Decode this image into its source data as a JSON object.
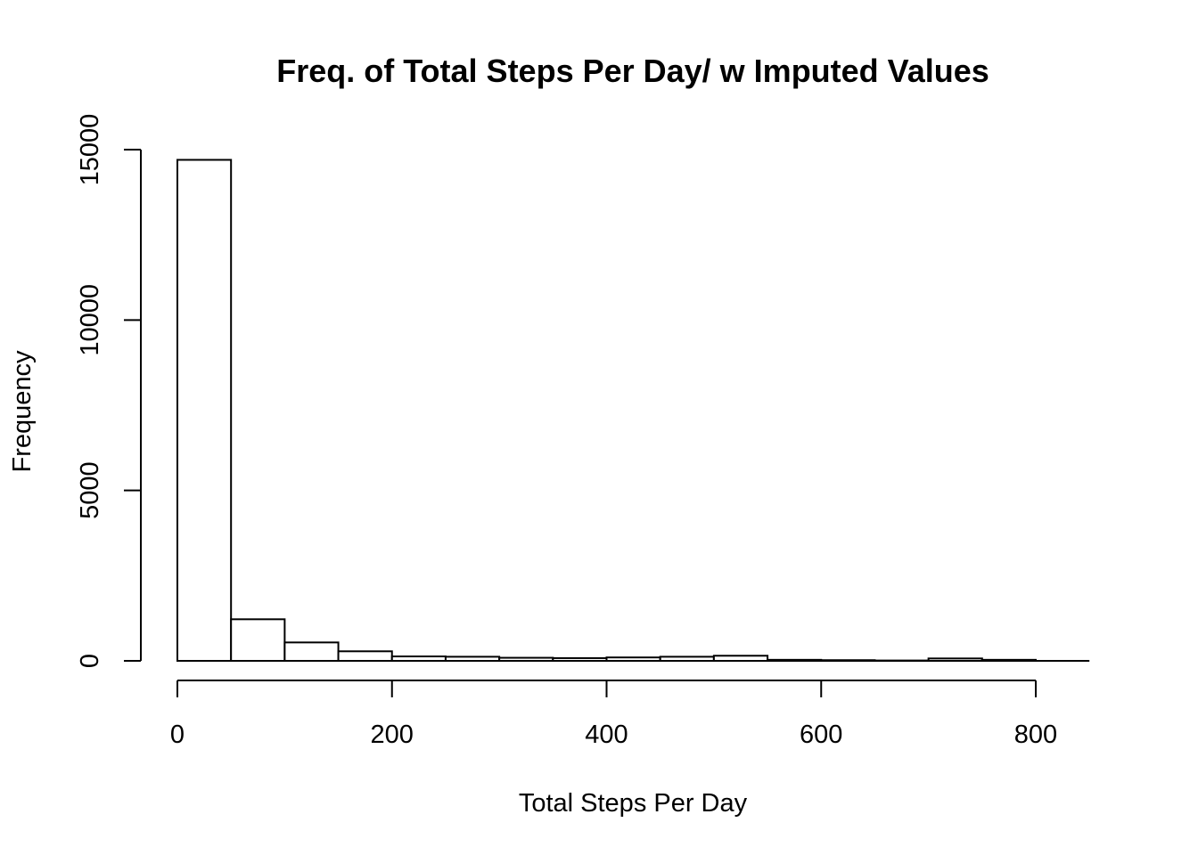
{
  "chart_data": {
    "type": "bar",
    "title": "Freq. of Total Steps Per Day/ w Imputed Values",
    "xlabel": "Total Steps Per Day",
    "ylabel": "Frequency",
    "bin_width": 50,
    "bins": [
      {
        "start": 0,
        "end": 50,
        "count": 14700
      },
      {
        "start": 50,
        "end": 100,
        "count": 1220
      },
      {
        "start": 100,
        "end": 150,
        "count": 540
      },
      {
        "start": 150,
        "end": 200,
        "count": 280
      },
      {
        "start": 200,
        "end": 250,
        "count": 130
      },
      {
        "start": 250,
        "end": 300,
        "count": 120
      },
      {
        "start": 300,
        "end": 350,
        "count": 90
      },
      {
        "start": 350,
        "end": 400,
        "count": 80
      },
      {
        "start": 400,
        "end": 450,
        "count": 100
      },
      {
        "start": 450,
        "end": 500,
        "count": 120
      },
      {
        "start": 500,
        "end": 550,
        "count": 150
      },
      {
        "start": 550,
        "end": 600,
        "count": 30
      },
      {
        "start": 600,
        "end": 650,
        "count": 20
      },
      {
        "start": 650,
        "end": 700,
        "count": 10
      },
      {
        "start": 700,
        "end": 750,
        "count": 70
      },
      {
        "start": 750,
        "end": 800,
        "count": 30
      }
    ],
    "xlim": [
      0,
      850
    ],
    "ylim": [
      0,
      15000
    ],
    "x_ticks": [
      0,
      200,
      400,
      600,
      800
    ],
    "x_tick_labels": [
      "0",
      "200",
      "400",
      "600",
      "800"
    ],
    "y_ticks": [
      0,
      5000,
      10000,
      15000
    ],
    "y_tick_labels": [
      "0",
      "5000",
      "10000",
      "15000"
    ],
    "grid": false,
    "legend": "none"
  }
}
